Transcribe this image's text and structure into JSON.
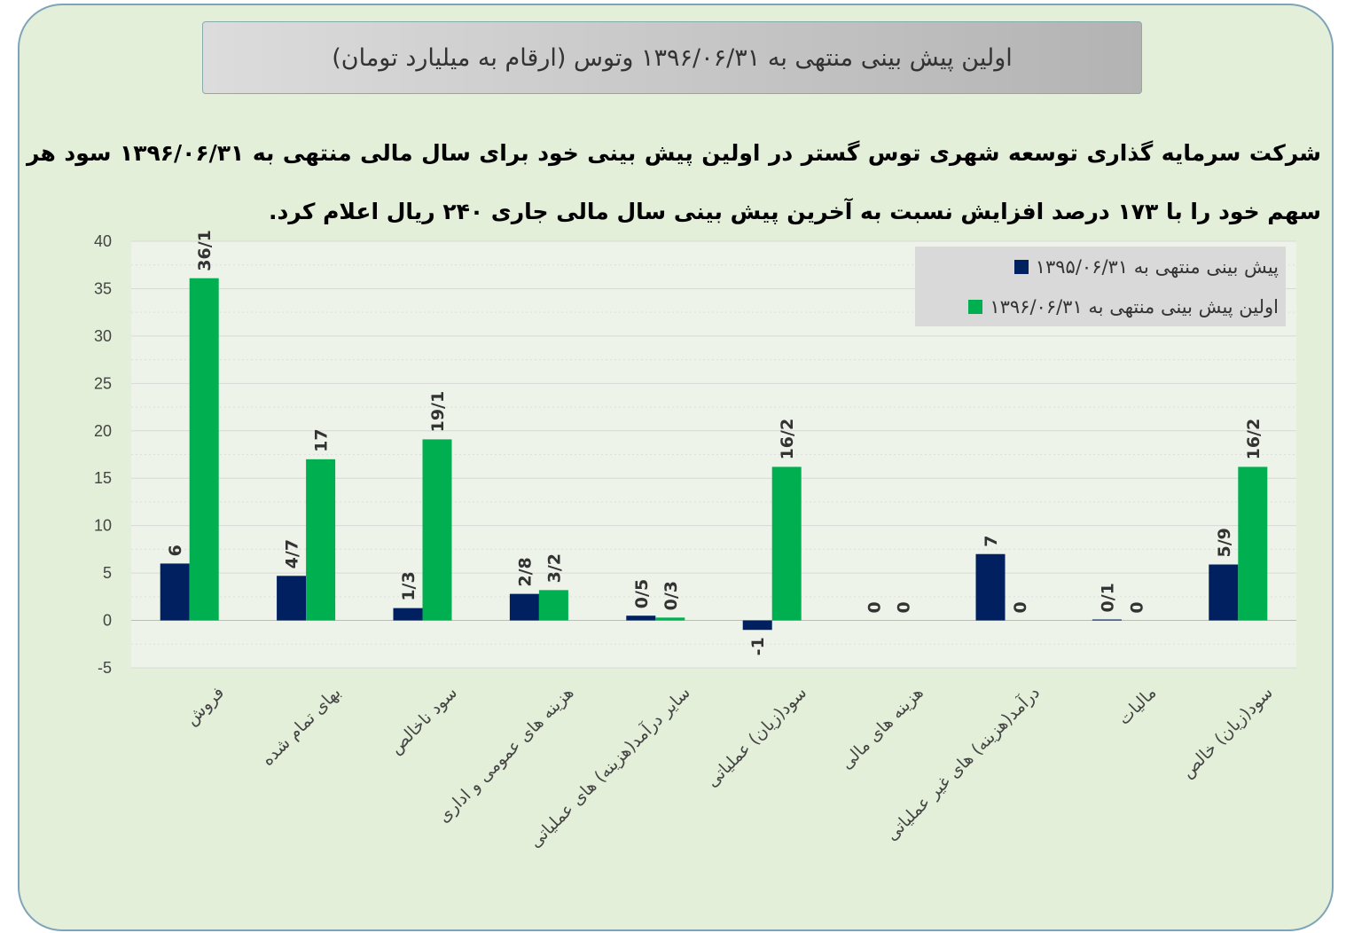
{
  "title": "اولین پیش بینی منتهی به ۱۳۹۶/۰۶/۳۱ وتوس (ارقام به میلیارد تومان)",
  "description": "شرکت سرمایه گذاری توسعه شهری توس گستر در اولین پیش بینی خود برای سال مالی منتهی به ۱۳۹۶/۰۶/۳۱ سود هر سهم خود را با ۱۷۳ درصد افزایش نسبت به آخرین پیش بینی سال مالی جاری ۲۴۰ ریال اعلام کرد.",
  "chart_data": {
    "type": "bar",
    "title": "اولین پیش بینی منتهی به ۱۳۹۶/۰۶/۳۱ وتوس (ارقام به میلیارد تومان)",
    "categories": [
      "فروش",
      "بهای تمام شده",
      "سود ناخالص",
      "هزینه های عمومی و اداری",
      "سایر درآمد(هزینه) های عملیاتی",
      "سود(زیان) عملیاتی",
      "هزینه های مالی",
      "درآمد(هزینه) های غیر عملیاتی",
      "مالیات",
      "سود(زیان) خالص"
    ],
    "series": [
      {
        "name": "پیش بینی منتهی به ۱۳۹۵/۰۶/۳۱",
        "color": "#002060",
        "values": [
          6,
          4.7,
          1.3,
          2.8,
          0.5,
          -1,
          0,
          7,
          0.1,
          5.9
        ],
        "labels": [
          "6",
          "4/7",
          "1/3",
          "2/8",
          "0/5",
          "-1",
          "0",
          "7",
          "0/1",
          "5/9"
        ]
      },
      {
        "name": "اولین پیش بینی منتهی به ۱۳۹۶/۰۶/۳۱",
        "color": "#00b050",
        "values": [
          36.1,
          17,
          19.1,
          3.2,
          0.3,
          16.2,
          0,
          0,
          0,
          16.2
        ],
        "labels": [
          "36/1",
          "17",
          "19/1",
          "3/2",
          "0/3",
          "16/2",
          "0",
          "0",
          "0",
          "16/2"
        ]
      }
    ],
    "ylim": [
      -5,
      40
    ],
    "yticks": [
      "-5",
      "0",
      "5",
      "10",
      "15",
      "20",
      "25",
      "30",
      "35",
      "40"
    ],
    "grid": true,
    "legend": "top-right"
  }
}
